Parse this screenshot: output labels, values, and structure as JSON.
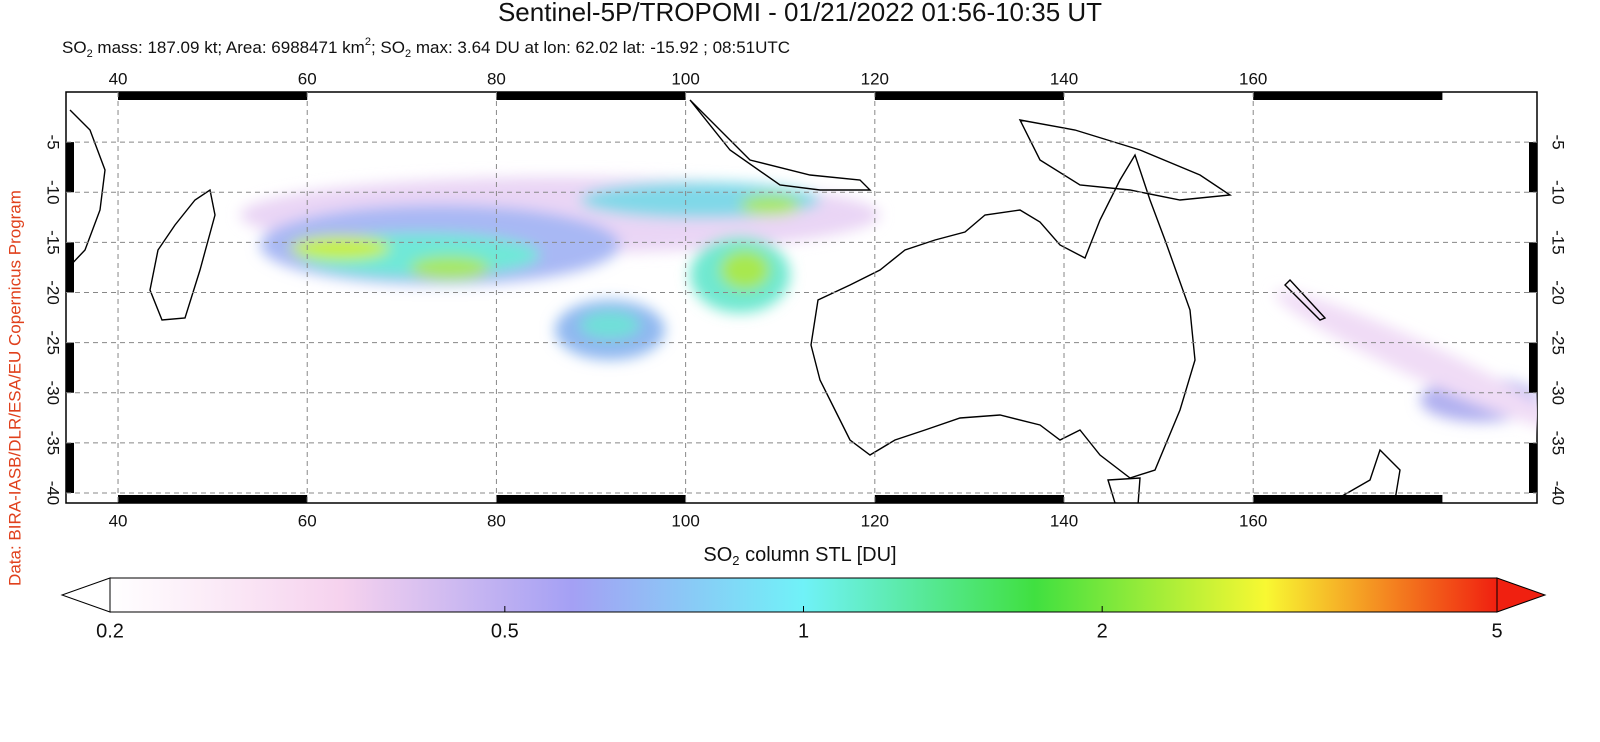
{
  "chart_data": {
    "type": "map",
    "title": "Sentinel-5P/TROPOMI - 01/21/2022 01:56-10:35 UT",
    "subtitle": [
      "SO",
      "2",
      " mass: 187.09 kt; Area: 6988471 km",
      "2",
      "; SO",
      "2",
      " max: 3.64 DU at lon: 62.02 lat: -15.92 ; 08:51UTC"
    ],
    "credit": "Data: BIRA-IASB/DLR/ESA/EU Copernicus Program",
    "xlim": [
      34.5,
      190
    ],
    "ylim": [
      0,
      -41
    ],
    "xticks": [
      40,
      60,
      80,
      100,
      120,
      140,
      160
    ],
    "yticks": [
      -5,
      -10,
      -15,
      -20,
      -25,
      -30,
      -35,
      -40
    ],
    "grid": true,
    "colorbar": {
      "label": [
        "SO",
        "2",
        " column STL [DU]"
      ],
      "lim": [
        0.2,
        5
      ],
      "log": true,
      "ticks": [
        0.2,
        0.5,
        1,
        2,
        5
      ],
      "colors": [
        "#ffffff",
        "#f6d2ee",
        "#a4a0f4",
        "#70f2f8",
        "#40e040",
        "#f8f832",
        "#f02010"
      ]
    }
  }
}
